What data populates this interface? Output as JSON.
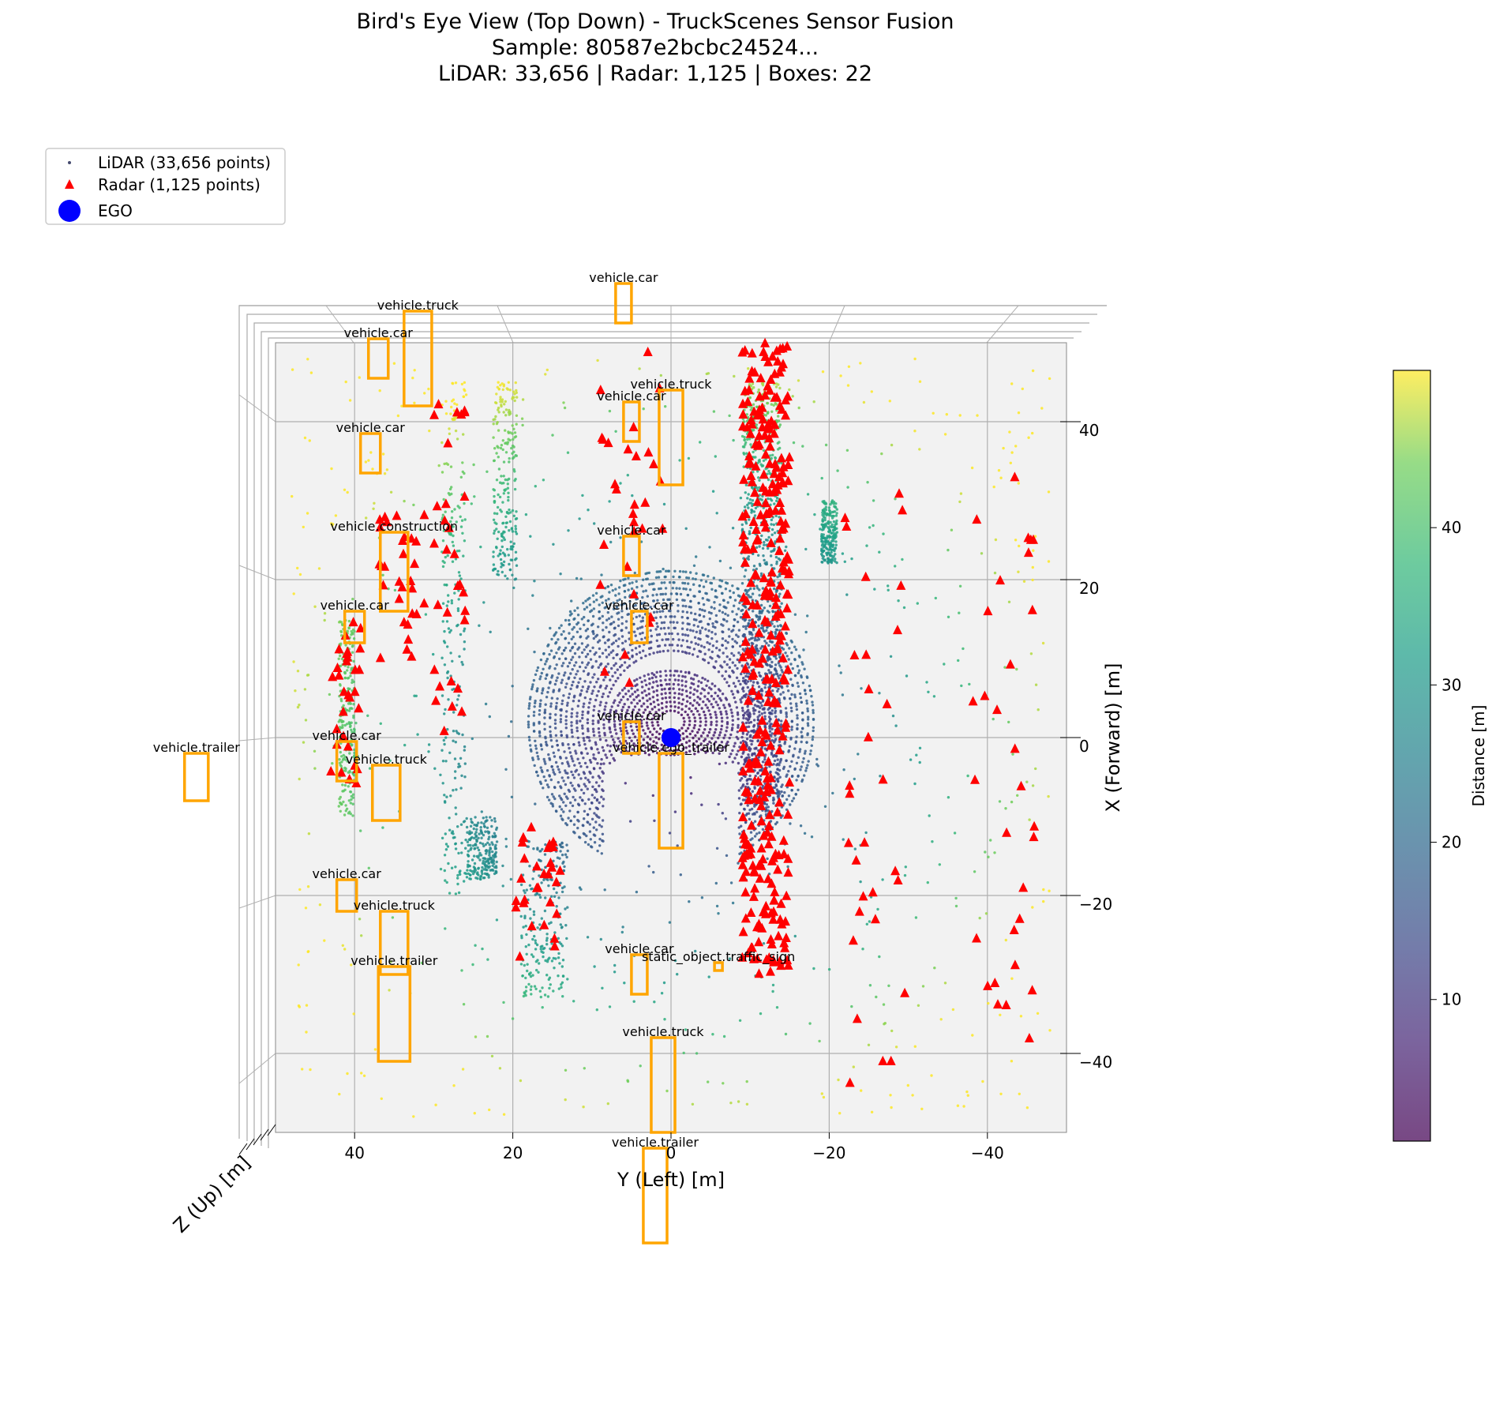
{
  "title_lines": [
    "Bird's Eye View (Top Down) - TruckScenes Sensor Fusion",
    "Sample: 80587e2bcbc24524...",
    "LiDAR: 33,656 | Radar: 1,125 | Boxes: 22"
  ],
  "legend": {
    "lidar": "LiDAR (33,656 points)",
    "radar": "Radar (1,125 points)",
    "ego": "EGO"
  },
  "axes": {
    "y_label": "Y (Left) [m]",
    "x_label": "X (Forward) [m]",
    "z_label": "Z (Up) [m]",
    "y_ticks": [
      "40",
      "20",
      "0",
      "−20",
      "−40"
    ],
    "x_ticks": [
      "40",
      "20",
      "0",
      "−20",
      "−40"
    ]
  },
  "colorbar": {
    "label": "Distance [m]",
    "ticks": [
      "10",
      "20",
      "30",
      "40"
    ],
    "range": [
      1,
      50
    ],
    "colormap": "viridis"
  },
  "colors": {
    "radar": "#ff0000",
    "ego": "#0000ff",
    "box": "#ffa500",
    "pane": "#f2f2f2",
    "grid": "#b0b0b0"
  },
  "chart_data": {
    "type": "scatter",
    "title": "Bird's Eye View (Top Down) - TruckScenes Sensor Fusion",
    "xlabel": "Y (Left) [m]",
    "ylabel": "X (Forward) [m]",
    "xlim": [
      50,
      -50
    ],
    "ylim": [
      -50,
      50
    ],
    "grid": true,
    "legend_position": "top-left",
    "counts": {
      "lidar": 33656,
      "radar": 1125,
      "boxes": 22
    },
    "ego": {
      "y": 0,
      "x": 0
    },
    "boxes": [
      {
        "label": "vehicle.car",
        "y": 6,
        "x": 55,
        "w": 2,
        "l": 5
      },
      {
        "label": "vehicle.car",
        "y": 37,
        "x": 48,
        "w": 2.5,
        "l": 5
      },
      {
        "label": "vehicle.truck",
        "y": 32,
        "x": 48,
        "w": 3.5,
        "l": 12
      },
      {
        "label": "vehicle.car",
        "y": 38,
        "x": 36,
        "w": 2.5,
        "l": 5
      },
      {
        "label": "vehicle.car",
        "y": 5,
        "x": 40,
        "w": 2,
        "l": 5
      },
      {
        "label": "vehicle.truck",
        "y": 0,
        "x": 38,
        "w": 3,
        "l": 12
      },
      {
        "label": "vehicle.car",
        "y": 5,
        "x": 23,
        "w": 2,
        "l": 5
      },
      {
        "label": "vehicle.construction",
        "y": 35,
        "x": 21,
        "w": 3.5,
        "l": 10
      },
      {
        "label": "vehicle.car",
        "y": 40,
        "x": 14,
        "w": 2.5,
        "l": 4
      },
      {
        "label": "vehicle.car",
        "y": 4,
        "x": 14,
        "w": 2,
        "l": 4
      },
      {
        "label": "vehicle.car",
        "y": 41,
        "x": -3,
        "w": 2.5,
        "l": 5
      },
      {
        "label": "vehicle.truck",
        "y": 36,
        "x": -7,
        "w": 3.5,
        "l": 7
      },
      {
        "label": "vehicle.trailer",
        "y": 60,
        "x": -5,
        "w": 3,
        "l": 6
      },
      {
        "label": "vehicle.ego_trailer",
        "y": 0,
        "x": -8,
        "w": 3,
        "l": 12
      },
      {
        "label": "vehicle.car",
        "y": 41,
        "x": -20,
        "w": 2.5,
        "l": 4
      },
      {
        "label": "vehicle.truck",
        "y": 35,
        "x": -26,
        "w": 3.5,
        "l": 8
      },
      {
        "label": "vehicle.trailer",
        "y": 35,
        "x": -35,
        "w": 4,
        "l": 12
      },
      {
        "label": "static_object.traffic_sign",
        "y": -6,
        "x": -29,
        "w": 1,
        "l": 1
      },
      {
        "label": "vehicle.car",
        "y": 4,
        "x": -30,
        "w": 2,
        "l": 5
      },
      {
        "label": "vehicle.truck",
        "y": 1,
        "x": -44,
        "w": 3,
        "l": 12
      },
      {
        "label": "vehicle.trailer",
        "y": 2,
        "x": -58,
        "w": 3,
        "l": 12
      },
      {
        "label": "vehicle.car",
        "y": 5,
        "x": 0,
        "w": 2,
        "l": 4
      }
    ],
    "colorbar": {
      "label": "Distance [m]",
      "min": 1,
      "max": 50,
      "ticks": [
        10,
        20,
        30,
        40
      ]
    }
  }
}
